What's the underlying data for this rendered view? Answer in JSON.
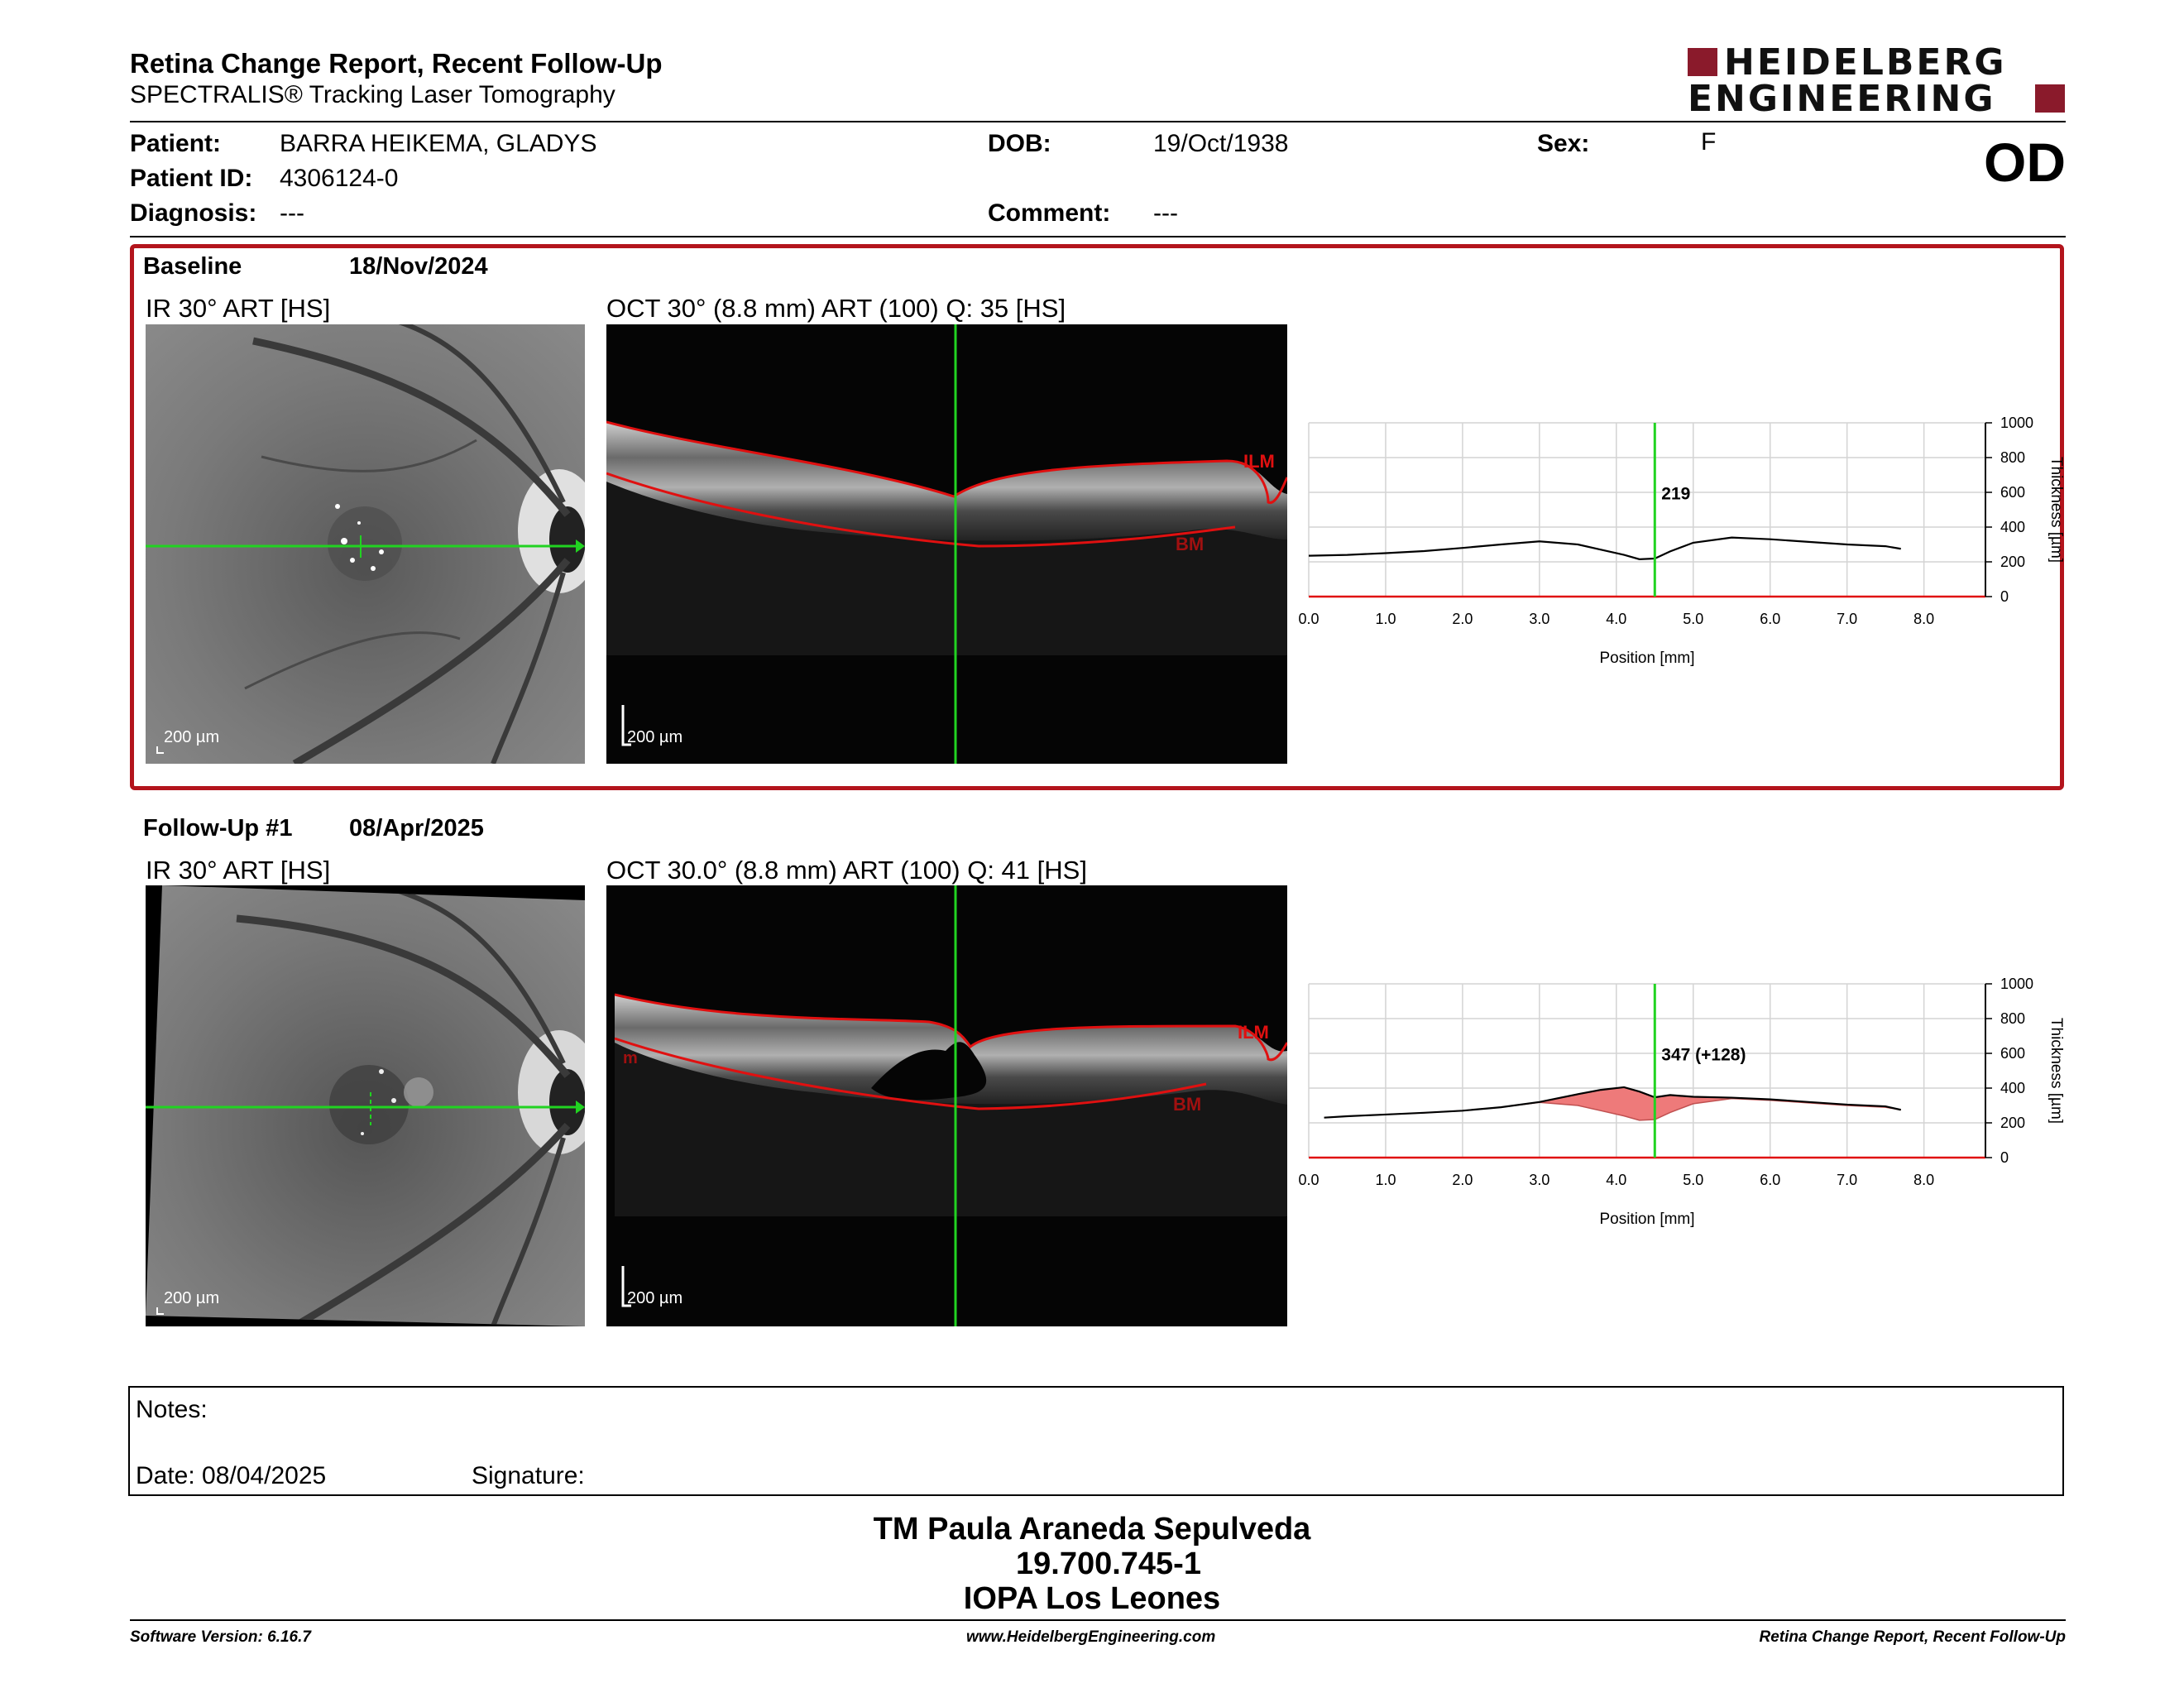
{
  "header": {
    "title": "Retina Change Report, Recent Follow-Up",
    "subtitle": "SPECTRALIS® Tracking Laser Tomography",
    "logo_line1": "HEIDELBERG",
    "logo_line2": "ENGINEERING",
    "eye": "OD"
  },
  "patient": {
    "patient_label": "Patient:",
    "patient_value": "BARRA HEIKEMA, GLADYS",
    "id_label": "Patient ID:",
    "id_value": "4306124-0",
    "diagnosis_label": "Diagnosis:",
    "diagnosis_value": "---",
    "dob_label": "DOB:",
    "dob_value": "19/Oct/1938",
    "comment_label": "Comment:",
    "comment_value": "---",
    "sex_label": "Sex:",
    "sex_value": "F"
  },
  "baseline": {
    "label": "Baseline",
    "date": "18/Nov/2024",
    "ir_title": "IR 30° ART [HS]",
    "oct_title": "OCT 30° (8.8 mm) ART (100) Q: 35 [HS]",
    "scale_label": "200 µm",
    "ilm_label": "ILM",
    "bm_label": "BM"
  },
  "followup": {
    "label": "Follow-Up #1",
    "date": "08/Apr/2025",
    "ir_title": "IR 30° ART [HS]",
    "oct_title": "OCT 30.0° (8.8 mm) ART (100) Q: 41 [HS]",
    "scale_label": "200 µm",
    "ilm_label": "ILM",
    "bm_label": "BM",
    "edge_label": "m"
  },
  "colors": {
    "frame_red": "#b3141c",
    "green": "#21d321",
    "segment_red": "#e01010",
    "diff_fill": "#ee7a7a"
  },
  "chart_data": [
    {
      "type": "line",
      "xlabel": "Position [mm]",
      "ylabel": "Thickness [µm]",
      "xlim": [
        0,
        8.8
      ],
      "ylim": [
        0,
        1000
      ],
      "x_ticks": [
        "0.0",
        "1.0",
        "2.0",
        "3.0",
        "4.0",
        "5.0",
        "6.0",
        "7.0",
        "8.0"
      ],
      "y_ticks": [
        "0",
        "200",
        "400",
        "600",
        "800",
        "1000"
      ],
      "cursor_x": 4.5,
      "cursor_label": "219",
      "grid": true,
      "series": [
        {
          "x": [
            0.0,
            0.5,
            1.0,
            1.5,
            2.0,
            2.5,
            3.0,
            3.5,
            3.8,
            4.1,
            4.3,
            4.5,
            4.7,
            5.0,
            5.5,
            6.0,
            6.5,
            7.0,
            7.5,
            7.7
          ],
          "values": [
            235,
            240,
            250,
            262,
            280,
            300,
            318,
            300,
            270,
            240,
            215,
            219,
            260,
            310,
            340,
            330,
            315,
            300,
            290,
            275
          ]
        }
      ]
    },
    {
      "type": "line",
      "xlabel": "Position [mm]",
      "ylabel": "Thickness [µm]",
      "xlim": [
        0,
        8.8
      ],
      "ylim": [
        0,
        1000
      ],
      "x_ticks": [
        "0.0",
        "1.0",
        "2.0",
        "3.0",
        "4.0",
        "5.0",
        "6.0",
        "7.0",
        "8.0"
      ],
      "y_ticks": [
        "0",
        "200",
        "400",
        "600",
        "800",
        "1000"
      ],
      "cursor_x": 4.5,
      "cursor_label": "347 (+128)",
      "grid": true,
      "series": [
        {
          "x": [
            0.2,
            0.5,
            1.0,
            1.5,
            2.0,
            2.5,
            3.0,
            3.5,
            3.8,
            4.1,
            4.3,
            4.5,
            4.7,
            5.0,
            5.5,
            6.0,
            6.5,
            7.0,
            7.5,
            7.7
          ],
          "values": [
            230,
            238,
            248,
            258,
            270,
            290,
            320,
            365,
            390,
            405,
            380,
            347,
            360,
            350,
            345,
            335,
            320,
            305,
            295,
            275
          ]
        },
        {
          "x": [
            0.2,
            0.5,
            1.0,
            1.5,
            2.0,
            2.5,
            3.0,
            3.5,
            3.8,
            4.1,
            4.3,
            4.5,
            4.7,
            5.0,
            5.5,
            6.0,
            6.5,
            7.0,
            7.5,
            7.7
          ],
          "values": [
            230,
            238,
            248,
            258,
            270,
            290,
            318,
            300,
            270,
            240,
            215,
            219,
            260,
            310,
            340,
            330,
            315,
            300,
            290,
            275
          ]
        }
      ]
    }
  ],
  "notes": {
    "notes_label": "Notes:",
    "date_label": "Date: 08/04/2025",
    "signature_label": "Signature:"
  },
  "signature_block": {
    "line1": "TM Paula Araneda Sepulveda",
    "line2": "19.700.745-1",
    "line3": "IOPA Los Leones"
  },
  "footer": {
    "software": "Software Version: 6.16.7",
    "website": "www.HeidelbergEngineering.com",
    "report": "Retina Change Report, Recent Follow-Up"
  }
}
